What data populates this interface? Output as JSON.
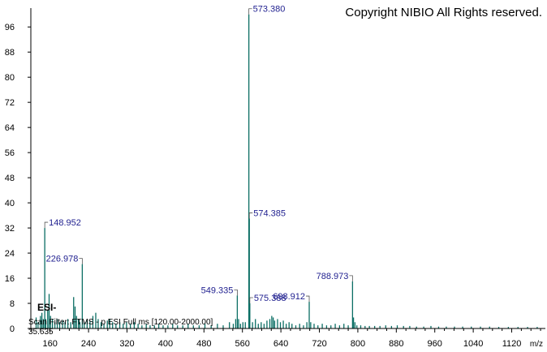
{
  "chart_data": {
    "type": "bar",
    "title": "",
    "xlabel": "m/z",
    "ylabel": "",
    "xlim": [
      120,
      1190
    ],
    "ylim": [
      0,
      102
    ],
    "x_ticks": [
      160,
      240,
      320,
      400,
      480,
      560,
      640,
      720,
      800,
      880,
      960,
      1040,
      1120
    ],
    "y_ticks": [
      0,
      8,
      16,
      24,
      32,
      40,
      48,
      56,
      64,
      72,
      80,
      88,
      96
    ],
    "grid": false,
    "color": "#0b6e64",
    "label_color": "#1f1f8f",
    "peaks": [
      {
        "mz": 131.0,
        "intensity": 3.5
      },
      {
        "mz": 135.0,
        "intensity": 2.0
      },
      {
        "mz": 140.0,
        "intensity": 4.0
      },
      {
        "mz": 143.0,
        "intensity": 5.0
      },
      {
        "mz": 146.0,
        "intensity": 3.0
      },
      {
        "mz": 148.952,
        "intensity": 32,
        "label": "148.952"
      },
      {
        "mz": 151.0,
        "intensity": 3.0
      },
      {
        "mz": 155.0,
        "intensity": 6.0
      },
      {
        "mz": 158.0,
        "intensity": 11.0
      },
      {
        "mz": 161.0,
        "intensity": 4.0
      },
      {
        "mz": 165.0,
        "intensity": 3.0
      },
      {
        "mz": 170.0,
        "intensity": 2.0
      },
      {
        "mz": 175.0,
        "intensity": 3.0
      },
      {
        "mz": 180.0,
        "intensity": 2.0
      },
      {
        "mz": 186.0,
        "intensity": 2.5
      },
      {
        "mz": 191.0,
        "intensity": 2.0
      },
      {
        "mz": 197.0,
        "intensity": 3.0
      },
      {
        "mz": 203.0,
        "intensity": 2.0
      },
      {
        "mz": 209.0,
        "intensity": 10.0
      },
      {
        "mz": 212.0,
        "intensity": 7.0
      },
      {
        "mz": 215.0,
        "intensity": 4.0
      },
      {
        "mz": 219.0,
        "intensity": 3.0
      },
      {
        "mz": 222.0,
        "intensity": 2.0
      },
      {
        "mz": 226.978,
        "intensity": 20.5,
        "label": "226.978"
      },
      {
        "mz": 231.0,
        "intensity": 2.0
      },
      {
        "mz": 237.0,
        "intensity": 3.0
      },
      {
        "mz": 243.0,
        "intensity": 2.5
      },
      {
        "mz": 249.0,
        "intensity": 4.0
      },
      {
        "mz": 255.0,
        "intensity": 5.0
      },
      {
        "mz": 260.0,
        "intensity": 3.0
      },
      {
        "mz": 266.0,
        "intensity": 2.0
      },
      {
        "mz": 272.0,
        "intensity": 1.5
      },
      {
        "mz": 279.0,
        "intensity": 2.5
      },
      {
        "mz": 284.0,
        "intensity": 3.0
      },
      {
        "mz": 290.0,
        "intensity": 2.0
      },
      {
        "mz": 297.0,
        "intensity": 1.5
      },
      {
        "mz": 305.0,
        "intensity": 2.0
      },
      {
        "mz": 312.0,
        "intensity": 1.5
      },
      {
        "mz": 319.0,
        "intensity": 2.0
      },
      {
        "mz": 327.0,
        "intensity": 1.5
      },
      {
        "mz": 335.0,
        "intensity": 2.0
      },
      {
        "mz": 343.0,
        "intensity": 1.5
      },
      {
        "mz": 351.0,
        "intensity": 1.0
      },
      {
        "mz": 360.0,
        "intensity": 1.5
      },
      {
        "mz": 368.0,
        "intensity": 1.0
      },
      {
        "mz": 377.0,
        "intensity": 1.0
      },
      {
        "mz": 386.0,
        "intensity": 1.5
      },
      {
        "mz": 395.0,
        "intensity": 1.0
      },
      {
        "mz": 405.0,
        "intensity": 1.0
      },
      {
        "mz": 415.0,
        "intensity": 1.5
      },
      {
        "mz": 425.0,
        "intensity": 1.0
      },
      {
        "mz": 436.0,
        "intensity": 1.0
      },
      {
        "mz": 447.0,
        "intensity": 1.5
      },
      {
        "mz": 458.0,
        "intensity": 1.0
      },
      {
        "mz": 470.0,
        "intensity": 1.0
      },
      {
        "mz": 482.0,
        "intensity": 1.5
      },
      {
        "mz": 495.0,
        "intensity": 1.0
      },
      {
        "mz": 508.0,
        "intensity": 1.5
      },
      {
        "mz": 520.0,
        "intensity": 1.0
      },
      {
        "mz": 533.0,
        "intensity": 2.0
      },
      {
        "mz": 541.0,
        "intensity": 1.5
      },
      {
        "mz": 546.0,
        "intensity": 3.0
      },
      {
        "mz": 549.335,
        "intensity": 10.5,
        "label": "549.335"
      },
      {
        "mz": 552.0,
        "intensity": 3.0
      },
      {
        "mz": 556.0,
        "intensity": 1.5
      },
      {
        "mz": 561.0,
        "intensity": 2.0
      },
      {
        "mz": 566.0,
        "intensity": 2.0
      },
      {
        "mz": 573.38,
        "intensity": 100,
        "label": "573.380"
      },
      {
        "mz": 574.385,
        "intensity": 35,
        "label": "574.385"
      },
      {
        "mz": 575.388,
        "intensity": 8,
        "label": "575.388"
      },
      {
        "mz": 581.0,
        "intensity": 2.0
      },
      {
        "mz": 587.0,
        "intensity": 3.0
      },
      {
        "mz": 593.0,
        "intensity": 1.5
      },
      {
        "mz": 599.0,
        "intensity": 2.0
      },
      {
        "mz": 605.0,
        "intensity": 1.5
      },
      {
        "mz": 611.0,
        "intensity": 2.5
      },
      {
        "mz": 617.0,
        "intensity": 3.0
      },
      {
        "mz": 621.0,
        "intensity": 4.0
      },
      {
        "mz": 624.0,
        "intensity": 3.5
      },
      {
        "mz": 627.0,
        "intensity": 2.5
      },
      {
        "mz": 633.0,
        "intensity": 3.0
      },
      {
        "mz": 639.0,
        "intensity": 2.0
      },
      {
        "mz": 645.0,
        "intensity": 2.5
      },
      {
        "mz": 651.0,
        "intensity": 1.5
      },
      {
        "mz": 657.0,
        "intensity": 2.0
      },
      {
        "mz": 663.0,
        "intensity": 1.5
      },
      {
        "mz": 671.0,
        "intensity": 1.0
      },
      {
        "mz": 679.0,
        "intensity": 1.5
      },
      {
        "mz": 687.0,
        "intensity": 1.0
      },
      {
        "mz": 694.0,
        "intensity": 2.0
      },
      {
        "mz": 698.912,
        "intensity": 8.5,
        "label": "698.912"
      },
      {
        "mz": 702.0,
        "intensity": 2.0
      },
      {
        "mz": 709.0,
        "intensity": 1.5
      },
      {
        "mz": 717.0,
        "intensity": 1.0
      },
      {
        "mz": 726.0,
        "intensity": 1.5
      },
      {
        "mz": 735.0,
        "intensity": 1.0
      },
      {
        "mz": 744.0,
        "intensity": 1.0
      },
      {
        "mz": 753.0,
        "intensity": 1.5
      },
      {
        "mz": 762.0,
        "intensity": 1.0
      },
      {
        "mz": 771.0,
        "intensity": 1.5
      },
      {
        "mz": 780.0,
        "intensity": 1.0
      },
      {
        "mz": 788.973,
        "intensity": 15,
        "label": "788.973"
      },
      {
        "mz": 791.0,
        "intensity": 3.5
      },
      {
        "mz": 794.0,
        "intensity": 2.0
      },
      {
        "mz": 798.0,
        "intensity": 1.0
      },
      {
        "mz": 806.0,
        "intensity": 1.0
      },
      {
        "mz": 815.0,
        "intensity": 0.8
      },
      {
        "mz": 824.0,
        "intensity": 0.8
      },
      {
        "mz": 835.0,
        "intensity": 0.8
      },
      {
        "mz": 846.0,
        "intensity": 0.8
      },
      {
        "mz": 858.0,
        "intensity": 1.0
      },
      {
        "mz": 870.0,
        "intensity": 0.8
      },
      {
        "mz": 882.0,
        "intensity": 1.0
      },
      {
        "mz": 895.0,
        "intensity": 0.8
      },
      {
        "mz": 908.0,
        "intensity": 0.8
      },
      {
        "mz": 922.0,
        "intensity": 0.6
      },
      {
        "mz": 937.0,
        "intensity": 0.6
      },
      {
        "mz": 952.0,
        "intensity": 0.8
      },
      {
        "mz": 968.0,
        "intensity": 0.6
      },
      {
        "mz": 984.0,
        "intensity": 0.6
      },
      {
        "mz": 1001.0,
        "intensity": 0.6
      },
      {
        "mz": 1018.0,
        "intensity": 0.6
      },
      {
        "mz": 1036.0,
        "intensity": 0.6
      },
      {
        "mz": 1055.0,
        "intensity": 0.6
      },
      {
        "mz": 1074.0,
        "intensity": 0.6
      },
      {
        "mz": 1093.0,
        "intensity": 0.5
      },
      {
        "mz": 1113.0,
        "intensity": 0.5
      },
      {
        "mz": 1133.0,
        "intensity": 0.5
      },
      {
        "mz": 1153.0,
        "intensity": 0.5
      },
      {
        "mz": 1173.0,
        "intensity": 0.5
      }
    ]
  },
  "copyright": "Copyright NIBIO All Rights reserved.",
  "ion_mode": "ESI-",
  "scan_filter": "Scan Filter: FTMS - p ESI Full ms [120.00-2000.00]",
  "rt": "35.635"
}
